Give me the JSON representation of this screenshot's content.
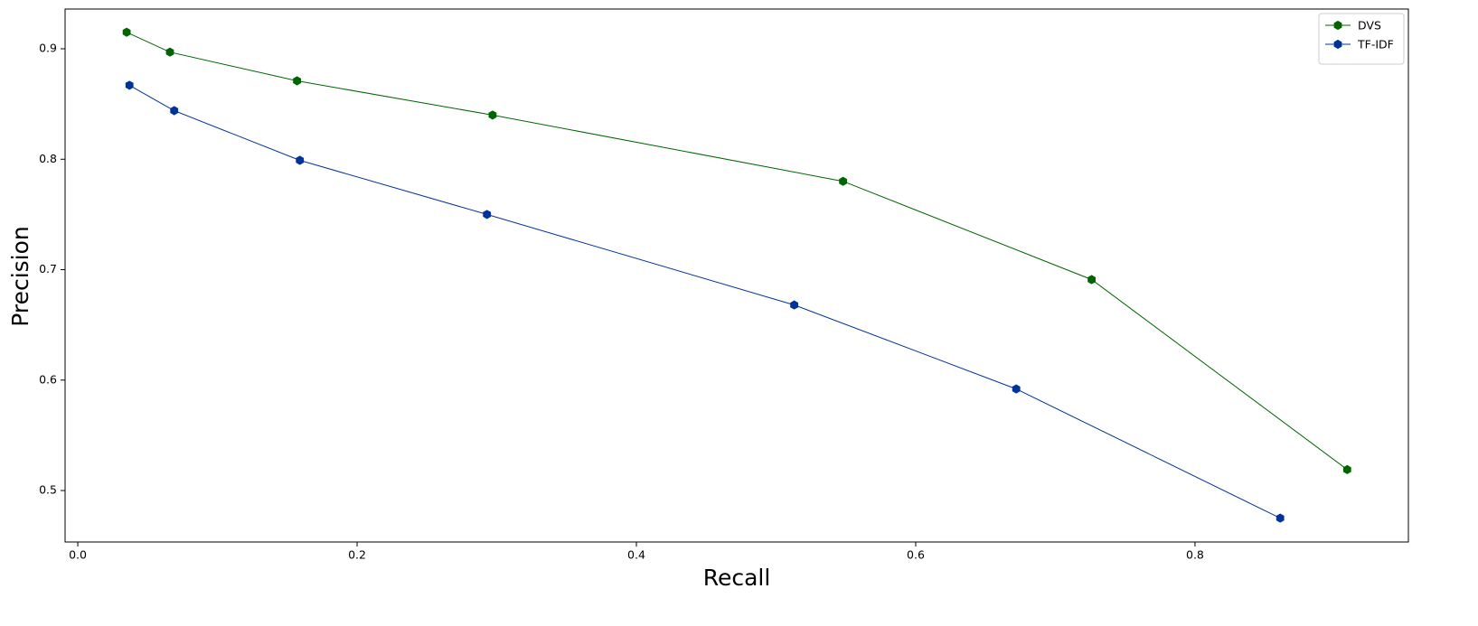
{
  "chart_data": {
    "type": "line",
    "x_label": "Recall",
    "y_label": "Precision",
    "series": [
      {
        "name": "DVS",
        "color": "#006400",
        "x": [
          0.035,
          0.066,
          0.157,
          0.297,
          0.548,
          0.726,
          0.909
        ],
        "values": [
          0.915,
          0.897,
          0.871,
          0.84,
          0.78,
          0.691,
          0.519
        ]
      },
      {
        "name": "TF-IDF",
        "color": "#003399",
        "x": [
          0.037,
          0.069,
          0.159,
          0.293,
          0.513,
          0.672,
          0.861
        ],
        "values": [
          0.867,
          0.844,
          0.799,
          0.75,
          0.668,
          0.592,
          0.475
        ]
      }
    ],
    "xlim": [
      -0.0091,
      0.9528
    ],
    "ylim": [
      0.4534,
      0.936
    ],
    "xticks": [
      {
        "value": 0,
        "label": "0.0"
      },
      0.2,
      0.4,
      0.6,
      0.8
    ],
    "yticks": [
      0.5,
      0.6,
      0.7,
      0.8,
      0.9
    ],
    "legend": "upper right",
    "grid": false
  }
}
